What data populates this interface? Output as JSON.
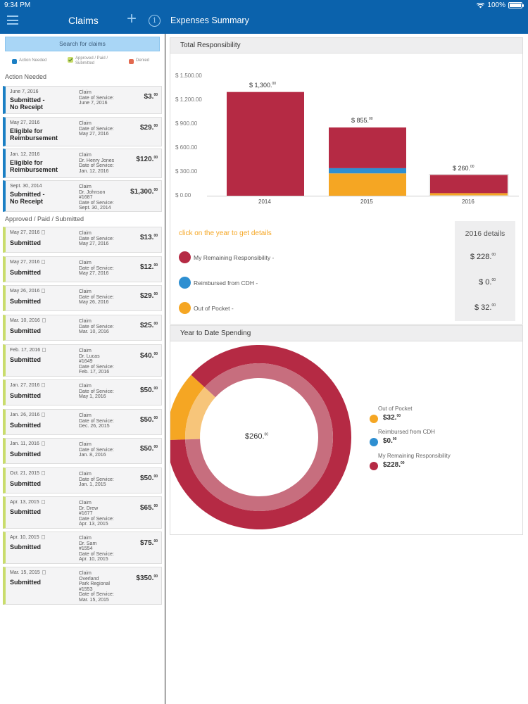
{
  "status": {
    "time": "9:34 PM",
    "battery": "100%",
    "battery_level": 1.0
  },
  "nav": {
    "title": "Claims",
    "plus": "+",
    "info": "i",
    "right_title": "Expenses Summary"
  },
  "colors": {
    "nav": "#0b62ac",
    "red": "#b52a44",
    "blue": "#2e8fd1",
    "orange": "#f5a623",
    "green": "#c9dc6c"
  },
  "left": {
    "search_label": "Search for claims",
    "legend": {
      "action": "Action Needed",
      "approved": "Approved / Paid / Submitted",
      "denied": "Denied"
    },
    "section_action": "Action Needed",
    "section_approved": "Approved / Paid / Submitted",
    "action_claims": [
      {
        "date": "June 7, 2016",
        "status": "Submitted -\nNo Receipt",
        "details": "Claim\nDate of Service:\nJune 7, 2016",
        "amount": "$3.",
        "cents": "00"
      },
      {
        "date": "May 27, 2016",
        "status": "Eligible for\nReimbursement",
        "details": "Claim\nDate of Service:\nMay 27, 2016",
        "amount": "$29.",
        "cents": "00"
      },
      {
        "date": "Jan. 12, 2016",
        "status": "Eligible for\nReimbursement",
        "details": "Claim\nDr. Henry Jones\nDate of Service:\nJan. 12, 2016",
        "amount": "$120.",
        "cents": "00"
      },
      {
        "date": "Sept. 30, 2014",
        "status": "Submitted -\nNo Receipt",
        "details": "Claim\nDr. Johnson\n#1687\nDate of Service:\nSept. 30, 2014",
        "amount": "$1,300.",
        "cents": "00"
      }
    ],
    "approved_claims": [
      {
        "date": "May 27, 2016",
        "status": "Submitted",
        "details": "Claim\nDate of Service:\nMay 27, 2016",
        "amount": "$13.",
        "cents": "00"
      },
      {
        "date": "May 27, 2016",
        "status": "Submitted",
        "details": "Claim\nDate of Service:\nMay 27, 2016",
        "amount": "$12.",
        "cents": "00"
      },
      {
        "date": "May 26, 2016",
        "status": "Submitted",
        "details": "Claim\nDate of Service:\nMay 26, 2016",
        "amount": "$29.",
        "cents": "00"
      },
      {
        "date": "Mar. 10, 2016",
        "status": "Submitted",
        "details": "Claim\nDate of Service:\nMar. 10, 2016",
        "amount": "$25.",
        "cents": "00"
      },
      {
        "date": "Feb. 17, 2016",
        "status": "Submitted",
        "details": "Claim\nDr. Lucas\n#1649\nDate of Service:\nFeb. 17, 2016",
        "amount": "$40.",
        "cents": "00"
      },
      {
        "date": "Jan. 27, 2016",
        "status": "Submitted",
        "details": "Claim\nDate of Service:\nMay 1, 2016",
        "amount": "$50.",
        "cents": "00"
      },
      {
        "date": "Jan. 26, 2016",
        "status": "Submitted",
        "details": "Claim\nDate of Service:\nDec. 26, 2015",
        "amount": "$50.",
        "cents": "00"
      },
      {
        "date": "Jan. 11, 2016",
        "status": "Submitted",
        "details": "Claim\nDate of Service:\nJan. 8, 2016",
        "amount": "$50.",
        "cents": "00"
      },
      {
        "date": "Oct. 21, 2015",
        "status": "Submitted",
        "details": "Claim\nDate of Service:\nJan. 1, 2015",
        "amount": "$50.",
        "cents": "00"
      },
      {
        "date": "Apr. 13, 2015",
        "status": "Submitted",
        "details": "Claim\nDr. Drew\n#1677\nDate of Service:\nApr. 13, 2015",
        "amount": "$65.",
        "cents": "00"
      },
      {
        "date": "Apr. 10, 2015",
        "status": "Submitted",
        "details": "Claim\nDr. Sam\n#1554\nDate of Service:\nApr. 10, 2015",
        "amount": "$75.",
        "cents": "00"
      },
      {
        "date": "Mar. 15, 2015",
        "status": "Submitted",
        "details": "Claim\nOverland\nPark Regional\n#1553\nDate of Service:\nMar. 15, 2015",
        "amount": "$350.",
        "cents": "00"
      }
    ]
  },
  "total_panel": {
    "title": "Total Responsibility",
    "hint": "click on the year to get details",
    "details_title": "2016 details",
    "rows": [
      {
        "label": "My Remaining Responsibility -",
        "value": "$ 228.",
        "cents": "00",
        "color": "#b52a44"
      },
      {
        "label": "Reimbursed from CDH -",
        "value": "$ 0.",
        "cents": "00",
        "color": "#2e8fd1"
      },
      {
        "label": "Out of Pocket -",
        "value": "$ 32.",
        "cents": "00",
        "color": "#f5a623"
      }
    ]
  },
  "donut_panel": {
    "title": "Year to Date Spending",
    "center_value": "$260.",
    "center_cents": "00",
    "legend": [
      {
        "label": "Out of Pocket",
        "value": "$32.",
        "cents": "00",
        "color": "#f5a623"
      },
      {
        "label": "Reimbursed from CDH",
        "value": "$0.",
        "cents": "00",
        "color": "#2e8fd1"
      },
      {
        "label": "My Remaining Responsibility",
        "value": "$228.",
        "cents": "00",
        "color": "#b52a44"
      }
    ]
  },
  "chart_data": [
    {
      "type": "bar",
      "stacked": true,
      "categories": [
        "2014",
        "2015",
        "2016"
      ],
      "series": [
        {
          "name": "My Remaining Responsibility",
          "values": [
            1300,
            510,
            228
          ]
        },
        {
          "name": "Reimbursed from CDH",
          "values": [
            0,
            65,
            0
          ]
        },
        {
          "name": "Out of Pocket",
          "values": [
            0,
            280,
            32
          ]
        }
      ],
      "totals": [
        "$ 1,300.00",
        "$ 855.00",
        "$ 260.00"
      ],
      "yticks": [
        "$ 0.00",
        "$ 300.00",
        "$ 600.00",
        "$ 900.00",
        "$ 1,200.00",
        "$ 1,500.00"
      ],
      "ylim": [
        0,
        1500
      ]
    },
    {
      "type": "pie",
      "labels": [
        "My Remaining Responsibility",
        "Reimbursed from CDH",
        "Out of Pocket"
      ],
      "values": [
        228,
        0,
        32
      ]
    }
  ]
}
